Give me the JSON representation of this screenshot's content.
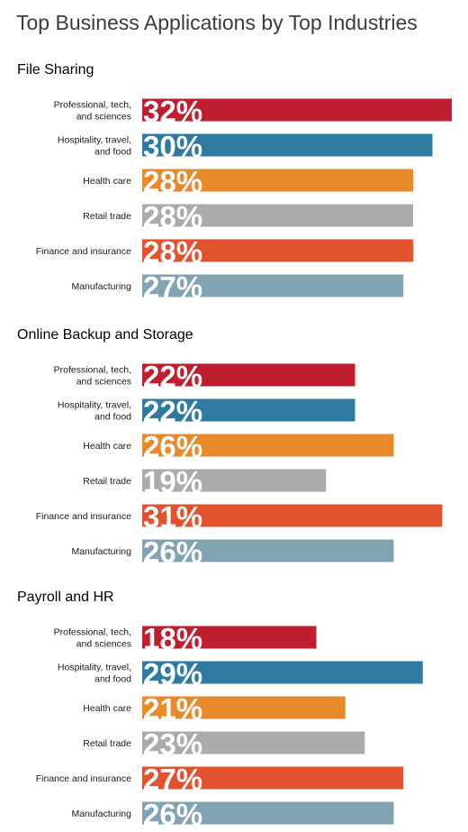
{
  "title": "Top Business Applications by Top Industries",
  "chart_data": [
    {
      "type": "bar",
      "orientation": "horizontal",
      "title": "File Sharing",
      "categories": [
        "Professional, tech, and sciences",
        "Hospitality, travel, and food",
        "Health care",
        "Retail trade",
        "Finance and insurance",
        "Manufacturing"
      ],
      "values": [
        32,
        30,
        28,
        28,
        28,
        27
      ],
      "value_labels": [
        "32%",
        "30%",
        "28%",
        "28%",
        "28%",
        "27%"
      ],
      "colors": [
        "#be1e2d",
        "#2e7aa1",
        "#e8892b",
        "#ababab",
        "#e2522e",
        "#82a3b1"
      ],
      "grid": false
    },
    {
      "type": "bar",
      "orientation": "horizontal",
      "title": "Online Backup and Storage",
      "categories": [
        "Professional, tech, and sciences",
        "Hospitality, travel, and food",
        "Health care",
        "Retail trade",
        "Finance and insurance",
        "Manufacturing"
      ],
      "values": [
        22,
        22,
        26,
        19,
        31,
        26
      ],
      "value_labels": [
        "22%",
        "22%",
        "26%",
        "19%",
        "31%",
        "26%"
      ],
      "colors": [
        "#be1e2d",
        "#2e7aa1",
        "#e8892b",
        "#ababab",
        "#e2522e",
        "#82a3b1"
      ],
      "grid": false
    },
    {
      "type": "bar",
      "orientation": "horizontal",
      "title": "Payroll and HR",
      "categories": [
        "Professional, tech, and sciences",
        "Hospitality, travel, and food",
        "Health care",
        "Retail trade",
        "Finance and insurance",
        "Manufacturing"
      ],
      "values": [
        18,
        29,
        21,
        23,
        27,
        26
      ],
      "value_labels": [
        "18%",
        "29%",
        "21%",
        "23%",
        "27%",
        "26%"
      ],
      "colors": [
        "#be1e2d",
        "#2e7aa1",
        "#e8892b",
        "#ababab",
        "#e2522e",
        "#82a3b1"
      ],
      "grid": false
    }
  ]
}
